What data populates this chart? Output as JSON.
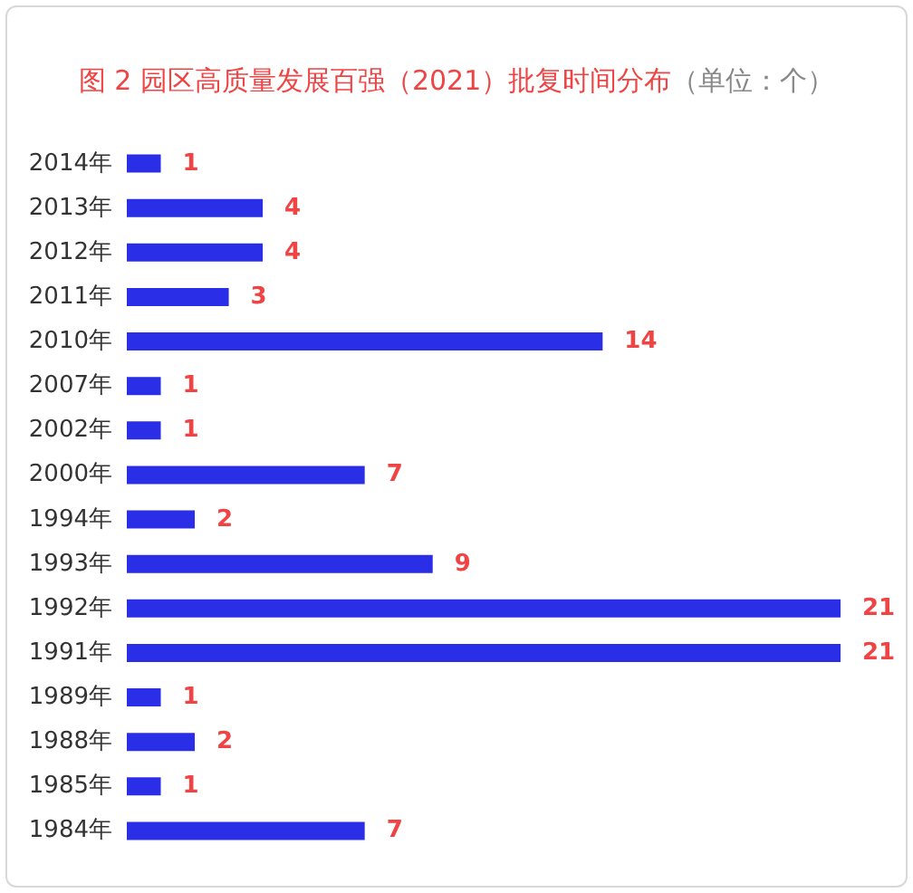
{
  "chart_data": {
    "type": "bar",
    "orientation": "horizontal",
    "title": "图 2 园区高质量发展百强（2021）批复时间分布",
    "subtitle": "（单位：个）",
    "categories": [
      "2014年",
      "2013年",
      "2012年",
      "2011年",
      "2010年",
      "2007年",
      "2002年",
      "2000年",
      "1994年",
      "1993年",
      "1992年",
      "1991年",
      "1989年",
      "1988年",
      "1985年",
      "1984年"
    ],
    "values": [
      1,
      4,
      4,
      3,
      14,
      1,
      1,
      7,
      2,
      9,
      21,
      21,
      1,
      2,
      1,
      7
    ],
    "color": "#2a2ee6",
    "data_labels": true
  }
}
